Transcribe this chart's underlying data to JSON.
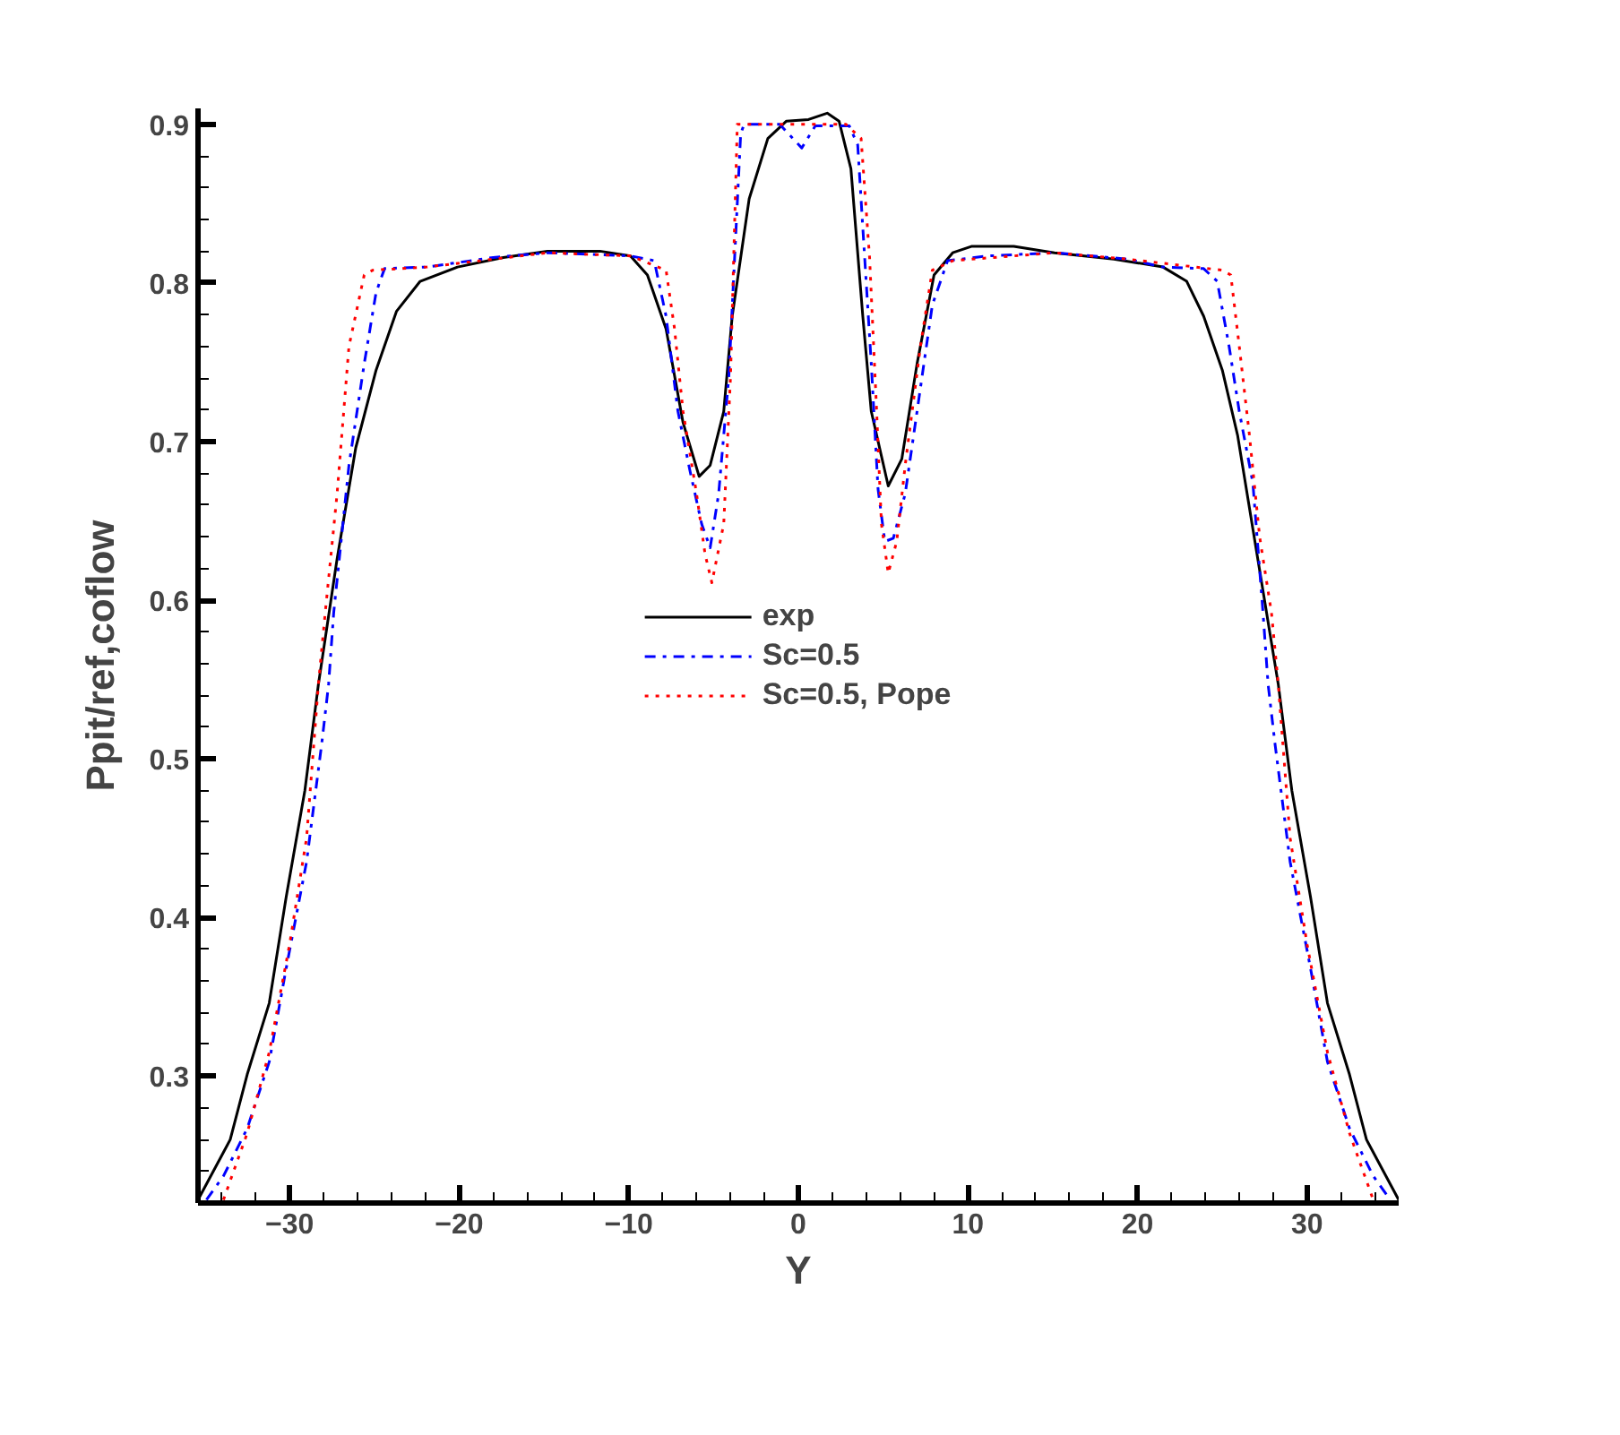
{
  "chart_data": {
    "type": "line",
    "xlabel": "Y",
    "ylabel": "Ppit/ref,coflow",
    "xlim": [
      -35.4,
      35.4
    ],
    "ylim": [
      0.22,
      0.91
    ],
    "xticks": [
      -30,
      -20,
      -10,
      0,
      10,
      20,
      30
    ],
    "yticks": [
      0.3,
      0.4,
      0.5,
      0.6,
      0.7,
      0.8,
      0.9
    ],
    "grid": false,
    "legend": "center",
    "marker": "none",
    "series": [
      {
        "name": "exp",
        "color": "#000000",
        "line_style": "solid",
        "x": [
          -35.4,
          -33.5,
          -32.5,
          -31.2,
          -30.2,
          -29.1,
          -28.3,
          -27.2,
          -26.1,
          -24.9,
          -23.7,
          -22.3,
          -20.1,
          -17.4,
          -14.8,
          -11.7,
          -9.9,
          -8.9,
          -7.8,
          -6.8,
          -5.85,
          -5.2,
          -4.4,
          -3.9,
          -2.9,
          -1.8,
          -0.7,
          0.6,
          1.7,
          2.4,
          3.1,
          3.8,
          4.3,
          5.3,
          6.1,
          7.0,
          8.0,
          9.1,
          10.2,
          12.7,
          15.1,
          18.6,
          21.5,
          22.9,
          23.9,
          25.0,
          25.9,
          26.8,
          28.3,
          29.1,
          30.2,
          31.2,
          32.5,
          33.5,
          35.4
        ],
        "values": [
          0.222,
          0.26,
          0.301,
          0.346,
          0.413,
          0.48,
          0.547,
          0.626,
          0.696,
          0.745,
          0.782,
          0.801,
          0.81,
          0.816,
          0.82,
          0.82,
          0.817,
          0.805,
          0.771,
          0.712,
          0.678,
          0.685,
          0.719,
          0.779,
          0.853,
          0.891,
          0.902,
          0.903,
          0.907,
          0.902,
          0.872,
          0.779,
          0.719,
          0.672,
          0.689,
          0.749,
          0.805,
          0.819,
          0.823,
          0.823,
          0.819,
          0.815,
          0.81,
          0.801,
          0.779,
          0.745,
          0.704,
          0.645,
          0.547,
          0.48,
          0.413,
          0.346,
          0.301,
          0.26,
          0.222
        ]
      },
      {
        "name": "Sc=0.5",
        "color": "#0000ff",
        "line_style": "dashdot",
        "x": [
          -34.9,
          -33.9,
          -32.5,
          -31.2,
          -30.2,
          -29.0,
          -28.1,
          -27.7,
          -27.4,
          -26.5,
          -25.6,
          -24.9,
          -24.4,
          -21.9,
          -18.0,
          -14.8,
          -9.9,
          -8.5,
          -7.8,
          -7.1,
          -6.4,
          -5.7,
          -5.2,
          -4.7,
          -4.1,
          -3.4,
          -3.2,
          -1.1,
          0.2,
          1.0,
          3.0,
          3.5,
          3.8,
          4.3,
          4.7,
          5.1,
          5.6,
          6.3,
          7.0,
          7.9,
          8.8,
          11.2,
          15.1,
          19.4,
          21.5,
          23.9,
          24.7,
          25.4,
          26.0,
          26.8,
          27.4,
          27.7,
          28.1,
          29.0,
          30.2,
          31.2,
          32.5,
          33.9,
          34.9
        ],
        "values": [
          0.222,
          0.237,
          0.267,
          0.309,
          0.368,
          0.435,
          0.51,
          0.547,
          0.592,
          0.685,
          0.749,
          0.794,
          0.809,
          0.81,
          0.816,
          0.819,
          0.817,
          0.814,
          0.779,
          0.719,
          0.682,
          0.648,
          0.633,
          0.667,
          0.741,
          0.894,
          0.9,
          0.9,
          0.885,
          0.899,
          0.899,
          0.887,
          0.835,
          0.749,
          0.67,
          0.637,
          0.639,
          0.667,
          0.719,
          0.786,
          0.814,
          0.817,
          0.819,
          0.815,
          0.81,
          0.809,
          0.801,
          0.76,
          0.719,
          0.674,
          0.592,
          0.547,
          0.51,
          0.435,
          0.368,
          0.309,
          0.267,
          0.237,
          0.222
        ]
      },
      {
        "name": "Sc=0.5, Pope",
        "color": "#ff0000",
        "line_style": "dotted",
        "x": [
          -33.9,
          -32.5,
          -31.2,
          -30.0,
          -29.0,
          -28.3,
          -27.9,
          -27.2,
          -26.5,
          -25.6,
          -25.1,
          -21.9,
          -14.8,
          -9.9,
          -7.8,
          -7.3,
          -6.8,
          -6.0,
          -5.5,
          -5.1,
          -4.4,
          -4.0,
          -3.6,
          2.8,
          3.7,
          4.2,
          4.6,
          4.9,
          5.3,
          5.8,
          6.3,
          7.2,
          7.9,
          9.1,
          15.1,
          19.4,
          25.0,
          25.5,
          26.0,
          26.6,
          27.2,
          27.9,
          28.3,
          29.0,
          30.0,
          31.2,
          32.5,
          33.9
        ],
        "values": [
          0.222,
          0.264,
          0.315,
          0.383,
          0.45,
          0.547,
          0.592,
          0.667,
          0.76,
          0.805,
          0.808,
          0.81,
          0.819,
          0.817,
          0.808,
          0.771,
          0.719,
          0.667,
          0.629,
          0.611,
          0.648,
          0.741,
          0.9,
          0.9,
          0.891,
          0.816,
          0.723,
          0.648,
          0.617,
          0.637,
          0.685,
          0.76,
          0.808,
          0.814,
          0.819,
          0.815,
          0.808,
          0.805,
          0.76,
          0.704,
          0.64,
          0.592,
          0.547,
          0.45,
          0.383,
          0.315,
          0.264,
          0.222
        ]
      }
    ]
  }
}
